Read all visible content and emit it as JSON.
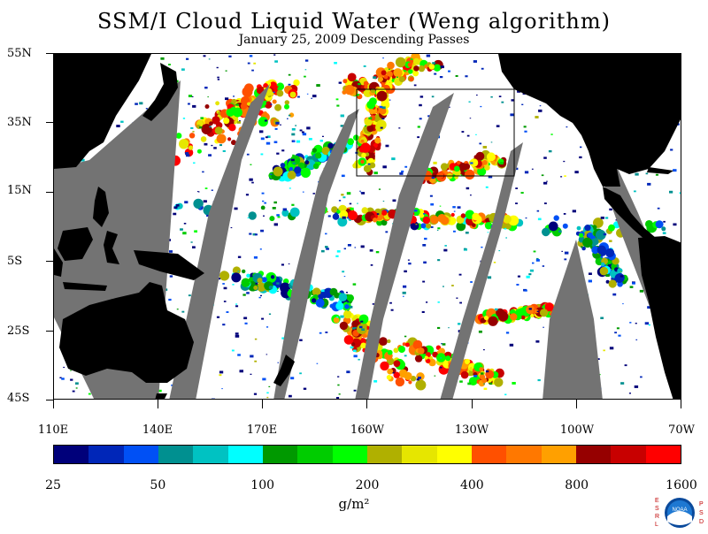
{
  "title": "SSM/I Cloud Liquid Water (Weng algorithm)",
  "subtitle": "January 25, 2009  Descending Passes",
  "lat_labels": [
    "55N",
    "35N",
    "15N",
    "5S",
    "25S",
    "45S"
  ],
  "lon_labels": [
    "110E",
    "140E",
    "170E",
    "160W",
    "130W",
    "100W",
    "70W"
  ],
  "colorbar": {
    "labels": [
      "25",
      "50",
      "100",
      "200",
      "400",
      "800",
      "1600"
    ],
    "units": "g/m²",
    "colors": [
      "#00007a",
      "#0026b8",
      "#0050f5",
      "#009090",
      "#00c2c2",
      "#00ffff",
      "#009900",
      "#00cc00",
      "#00ff00",
      "#b0b000",
      "#e6e600",
      "#ffff00",
      "#ff5000",
      "#ff7800",
      "#ffa000",
      "#960000",
      "#c80000",
      "#ff0000"
    ]
  },
  "logo": {
    "left_text": "ESRL",
    "right_text": "PSD",
    "center_text": "NOAA"
  },
  "map_colors": {
    "land": "#000000",
    "no_data_swath": "#737373",
    "ocean_clear": "#ffffff",
    "box": "#000000"
  }
}
